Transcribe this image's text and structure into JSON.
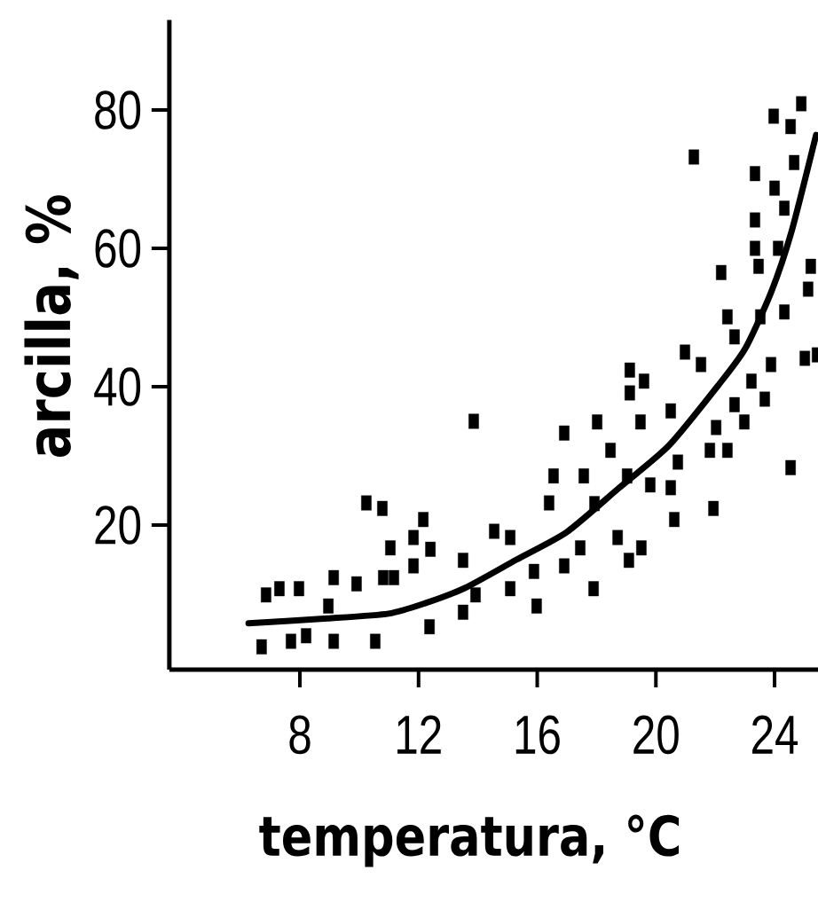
{
  "chart_data": {
    "type": "scatter",
    "xlabel": "temperatura, °C",
    "ylabel": "arcilla, %",
    "xlim": [
      3.6,
      25.5
    ],
    "ylim": [
      -0.9,
      93
    ],
    "xticks": [
      8,
      12,
      16,
      20,
      24
    ],
    "yticks": [
      20,
      40,
      60,
      80
    ],
    "grid": false,
    "marker": "square",
    "series": [
      {
        "color": "#000000",
        "x": [
          10.24,
          10.78,
          12.16,
          11.05,
          11.83,
          12.4,
          14.55,
          15.09,
          6.86,
          7.31,
          7.97,
          9.14,
          9.91,
          10.81,
          11.17,
          11.83,
          13.5,
          15.09,
          8.96,
          13.5,
          12.37,
          13.92,
          6.71,
          7.7,
          8.21,
          9.14,
          10.54,
          13.86,
          20.98,
          19.12,
          19.6,
          19.12,
          20.5,
          18.02,
          19.48,
          16.91,
          18.47,
          16.55,
          17.57,
          19.03,
          19.81,
          20.74,
          20.5,
          16.4,
          17.93,
          20.62,
          18.71,
          19.51,
          19.09,
          17.45,
          16.91,
          15.89,
          17.9,
          15.98,
          24.9,
          23.97,
          24.54,
          21.28,
          24.66,
          23.34,
          24.0,
          24.33,
          23.34,
          23.34,
          24.12,
          23.46,
          25.22,
          25.13,
          22.2,
          22.41,
          23.52,
          24.33,
          22.65,
          21.52,
          23.88,
          25.02,
          25.43,
          23.22,
          23.67,
          22.65,
          22.98,
          22.03,
          21.82,
          22.41,
          24.54,
          21.94
        ],
        "values": [
          23.2,
          22.4,
          20.8,
          16.7,
          18.2,
          16.5,
          19.1,
          18.2,
          9.9,
          10.8,
          10.8,
          12.4,
          11.5,
          12.4,
          12.4,
          14.1,
          14.9,
          10.8,
          8.3,
          7.4,
          5.3,
          9.9,
          2.4,
          3.2,
          4.0,
          3.2,
          3.2,
          35.0,
          45.0,
          42.4,
          40.8,
          39.1,
          36.5,
          34.9,
          34.9,
          33.3,
          30.8,
          27.1,
          27.1,
          27.1,
          25.8,
          29.1,
          25.4,
          23.2,
          23.1,
          20.8,
          18.2,
          16.7,
          14.9,
          16.7,
          14.1,
          13.3,
          10.8,
          8.3,
          80.9,
          79.1,
          77.6,
          73.2,
          72.4,
          70.8,
          68.7,
          65.8,
          64.1,
          60.0,
          60.0,
          57.4,
          57.4,
          54.1,
          56.5,
          50.1,
          50.1,
          50.8,
          47.2,
          43.2,
          43.2,
          44.1,
          44.6,
          40.8,
          38.2,
          37.4,
          34.9,
          34.1,
          30.8,
          30.8,
          28.3,
          22.4
        ]
      },
      {
        "type": "line",
        "color": "#000000",
        "marker": "none",
        "line_style": "solid",
        "x": [
          6.27,
          8.93,
          10.99,
          12.22,
          13.56,
          15.3,
          17.0,
          18.74,
          20.44,
          22.14,
          23.01,
          23.88,
          24.57,
          25.4
        ],
        "values": [
          5.8,
          6.5,
          7.2,
          8.7,
          10.9,
          15.0,
          19.0,
          25.3,
          31.5,
          40.4,
          45.5,
          53.6,
          62.4,
          76.4
        ]
      }
    ]
  }
}
